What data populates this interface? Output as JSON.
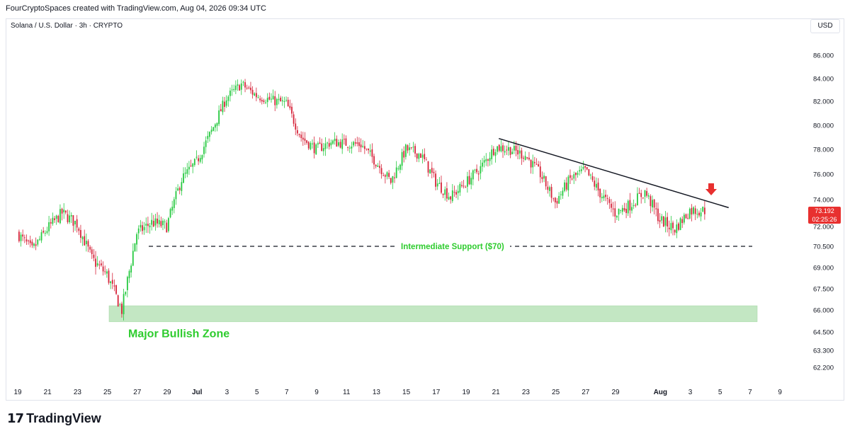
{
  "header": "FourCryptoSpaces created with TradingView.com, Aug 04, 2026 09:34 UTC",
  "symbol": "Solana / U.S. Dollar · 3h · CRYPTO",
  "currency": "USD",
  "last_price": "73.192",
  "countdown": "02:25:26",
  "brand": {
    "mark": "17",
    "name": "TradingView"
  },
  "colors": {
    "up": "#26c940",
    "down": "#d6243a",
    "zone": "#b8e3b8",
    "support_label": "#2ecc2e",
    "price_badge": "#e8302f"
  },
  "chart_data": {
    "type": "candlestick",
    "interval": "3h",
    "y_ticks": [
      "86.000",
      "84.000",
      "82.000",
      "80.000",
      "78.000",
      "76.000",
      "74.000",
      "72.000",
      "70.500",
      "69.000",
      "67.500",
      "66.000",
      "64.500",
      "63.300",
      "62.200"
    ],
    "x_ticks": [
      "19",
      "21",
      "23",
      "25",
      "27",
      "29",
      "Jul",
      "3",
      "5",
      "7",
      "9",
      "11",
      "13",
      "15",
      "17",
      "19",
      "21",
      "23",
      "25",
      "27",
      "29",
      "Aug",
      "3",
      "5",
      "7",
      "9"
    ],
    "price_path": [
      [
        "Jun 19",
        71.5
      ],
      [
        "Jun 20",
        70.2
      ],
      [
        "Jun 21",
        71.8
      ],
      [
        "Jun 22",
        73.0
      ],
      [
        "Jun 23",
        72.2
      ],
      [
        "Jun 24",
        69.6
      ],
      [
        "Jun 25",
        68.5
      ],
      [
        "Jun 26",
        66.0
      ],
      [
        "Jun 27",
        71.5
      ],
      [
        "Jun 28",
        72.3
      ],
      [
        "Jun 29",
        72.0
      ],
      [
        "Jun 30",
        75.6
      ],
      [
        "Jul 1",
        77.0
      ],
      [
        "Jul 2",
        79.5
      ],
      [
        "Jul 3",
        82.3
      ],
      [
        "Jul 4",
        83.5
      ],
      [
        "Jul 5",
        82.5
      ],
      [
        "Jul 6",
        82.1
      ],
      [
        "Jul 7",
        81.8
      ],
      [
        "Jul 8",
        79.0
      ],
      [
        "Jul 9",
        78.0
      ],
      [
        "Jul 10",
        78.6
      ],
      [
        "Jul 11",
        78.5
      ],
      [
        "Jul 12",
        78.4
      ],
      [
        "Jul 13",
        77.0
      ],
      [
        "Jul 14",
        75.4
      ],
      [
        "Jul 15",
        78.0
      ],
      [
        "Jul 16",
        77.6
      ],
      [
        "Jul 17",
        75.4
      ],
      [
        "Jul 18",
        74.2
      ],
      [
        "Jul 19",
        75.3
      ],
      [
        "Jul 20",
        76.5
      ],
      [
        "Jul 21",
        78.2
      ],
      [
        "Jul 22",
        78.0
      ],
      [
        "Jul 23",
        77.5
      ],
      [
        "Jul 24",
        76.0
      ],
      [
        "Jul 25",
        73.8
      ],
      [
        "Jul 26",
        75.6
      ],
      [
        "Jul 27",
        76.3
      ],
      [
        "Jul 28",
        74.5
      ],
      [
        "Jul 29",
        73.0
      ],
      [
        "Jul 30",
        73.6
      ],
      [
        "Jul 31",
        74.6
      ],
      [
        "Aug 1",
        72.5
      ],
      [
        "Aug 2",
        71.8
      ],
      [
        "Aug 3",
        73.2
      ],
      [
        "Aug 4",
        73.2
      ]
    ],
    "trendline": {
      "from": [
        "Jul 21",
        78.9
      ],
      "to": [
        "Aug 5",
        73.4
      ]
    },
    "support": {
      "value": 70.5,
      "label": "Intermediate Support ($70)"
    },
    "zone": {
      "low": 65.2,
      "high": 66.3,
      "label": "Major Bullish Zone"
    }
  }
}
